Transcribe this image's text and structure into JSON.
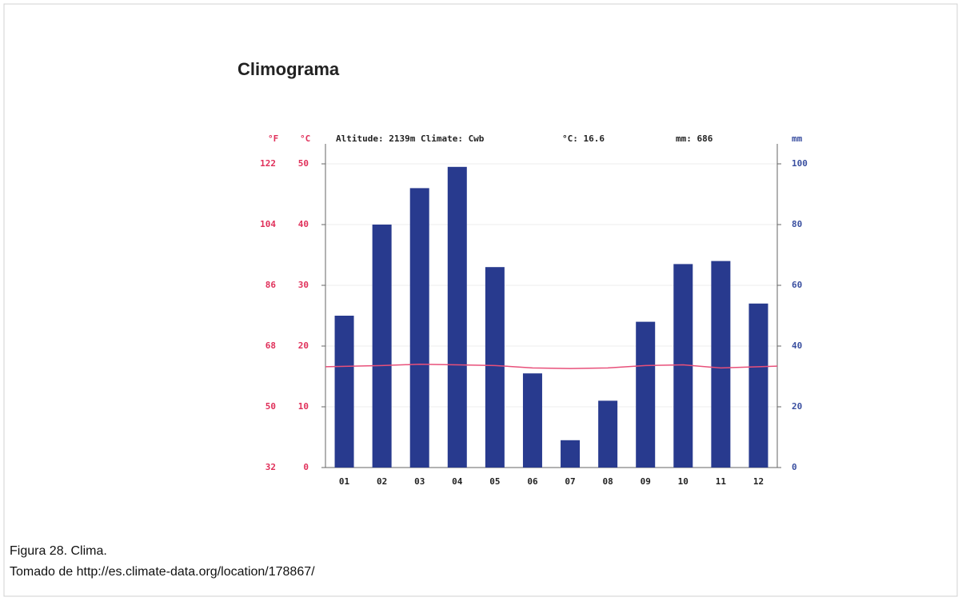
{
  "chart_data": {
    "type": "bar",
    "title": "Climograma",
    "annotations": [
      "Altitude: 2139m Climate: Cwb",
      "°C: 16.6",
      "mm: 686"
    ],
    "ylabel": "°C",
    "y2label": "mm",
    "y_fahrenheit_label": "°F",
    "categories": [
      "01",
      "02",
      "03",
      "04",
      "05",
      "06",
      "07",
      "08",
      "09",
      "10",
      "11",
      "12"
    ],
    "series": [
      {
        "type": "bar",
        "axis": "y2",
        "color": "#283a8e",
        "values": [
          50,
          80,
          92,
          99,
          66,
          31,
          9,
          22,
          48,
          67,
          68,
          54
        ]
      },
      {
        "type": "line",
        "color": "#e8507a",
        "values": [
          16.6,
          16.8,
          17.0,
          16.9,
          16.8,
          16.4,
          16.3,
          16.4,
          16.8,
          16.9,
          16.4,
          16.7
        ]
      }
    ],
    "ylim": [
      0,
      50
    ],
    "yticks": [
      0,
      10,
      20,
      30,
      40,
      50
    ],
    "y_fahrenheit_ticks": [
      32,
      50,
      68,
      86,
      104,
      122
    ],
    "y2lim": [
      0,
      100
    ],
    "y2ticks": [
      0,
      20,
      40,
      60,
      80,
      100
    ],
    "grid": true
  },
  "caption": [
    "Figura 28. Clima.",
    "Tomado de http://es.climate-data.org/location/178867/"
  ]
}
